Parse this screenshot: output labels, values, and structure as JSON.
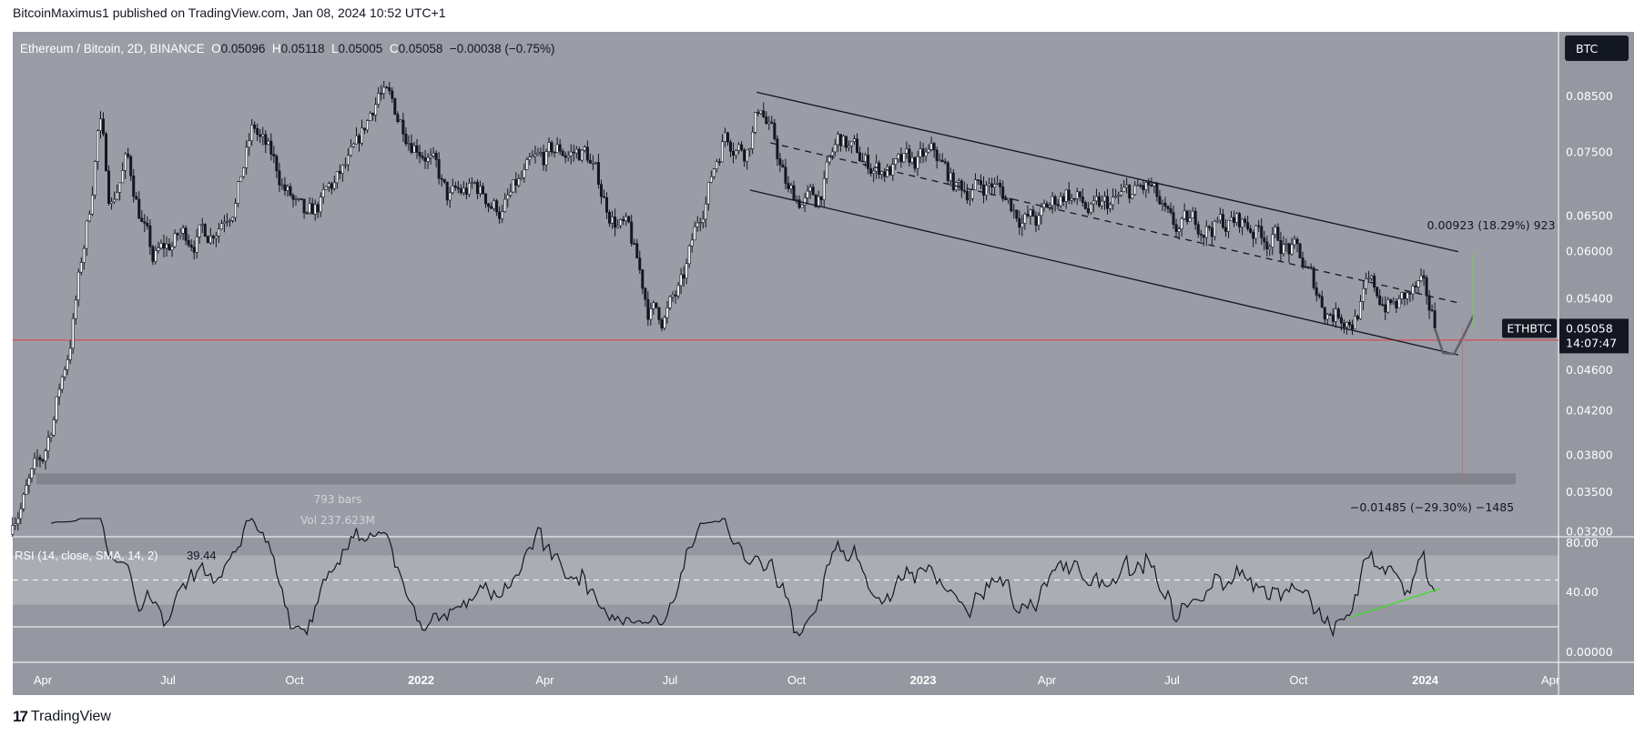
{
  "header": {
    "published": "BitcoinMaximus1 published on TradingView.com, Jan 08, 2024 10:52 UTC+1"
  },
  "legend": {
    "symbol": "Ethereum / Bitcoin, 2D, BINANCE",
    "o_label": "O",
    "o": "0.05096",
    "h_label": "H",
    "h": "0.05118",
    "l_label": "L",
    "l": "0.05005",
    "c_label": "C",
    "c": "0.05058",
    "change": "−0.00038 (−0.75%)"
  },
  "currency_button": "BTC",
  "price_label": {
    "ticker": "ETHBTC",
    "price": "0.05058",
    "countdown": "14:07:47"
  },
  "colors": {
    "pane_bg": "#9a9da6",
    "axis_bg": "#9598a1",
    "up_candle": "#ffffff",
    "down_candle": "#131722",
    "support_line": "#f23645",
    "projection_up": "#7fbf6a",
    "rsi_trendline": "#39e01f",
    "rsi_band": "#abadb5"
  },
  "chart_data": {
    "type": "candlestick",
    "title": "Ethereum / Bitcoin, 2D, BINANCE",
    "y_scale": "log",
    "ylim": [
      0.031,
      0.091
    ],
    "y_ticks": [
      "0.08500",
      "0.07500",
      "0.06500",
      "0.06000",
      "0.05400",
      "0.04600",
      "0.04200",
      "0.03800",
      "0.03500",
      "0.03200"
    ],
    "x_ticks": [
      {
        "label": "Apr",
        "date": "2021-04-01"
      },
      {
        "label": "Jul",
        "date": "2021-07-01"
      },
      {
        "label": "Oct",
        "date": "2021-10-01"
      },
      {
        "label": "2022",
        "date": "2022-01-01",
        "bold": true
      },
      {
        "label": "Apr",
        "date": "2022-04-01"
      },
      {
        "label": "Jul",
        "date": "2022-07-01"
      },
      {
        "label": "Oct",
        "date": "2022-10-01"
      },
      {
        "label": "2023",
        "date": "2023-01-01",
        "bold": true
      },
      {
        "label": "Apr",
        "date": "2023-04-01"
      },
      {
        "label": "Jul",
        "date": "2023-07-01"
      },
      {
        "label": "Oct",
        "date": "2023-10-01"
      },
      {
        "label": "2024",
        "date": "2024-01-01",
        "bold": true
      },
      {
        "label": "Apr",
        "date": "2024-04-01"
      }
    ],
    "close_path": [
      [
        "2021-03-10",
        0.0333
      ],
      [
        "2021-04-01",
        0.0374
      ],
      [
        "2021-04-20",
        0.0485
      ],
      [
        "2021-05-05",
        0.066
      ],
      [
        "2021-05-12",
        0.0815
      ],
      [
        "2021-05-20",
        0.067
      ],
      [
        "2021-06-01",
        0.074
      ],
      [
        "2021-06-20",
        0.0586
      ],
      [
        "2021-07-10",
        0.062
      ],
      [
        "2021-08-01",
        0.063
      ],
      [
        "2021-08-20",
        0.069
      ],
      [
        "2021-09-01",
        0.079
      ],
      [
        "2021-09-20",
        0.071
      ],
      [
        "2021-10-10",
        0.063
      ],
      [
        "2021-10-25",
        0.068
      ],
      [
        "2021-11-15",
        0.074
      ],
      [
        "2021-12-01",
        0.0865
      ],
      [
        "2021-12-15",
        0.081
      ],
      [
        "2022-01-05",
        0.076
      ],
      [
        "2022-01-20",
        0.067
      ],
      [
        "2022-02-10",
        0.069
      ],
      [
        "2022-03-01",
        0.066
      ],
      [
        "2022-03-20",
        0.071
      ],
      [
        "2022-04-10",
        0.075
      ],
      [
        "2022-05-01",
        0.075
      ],
      [
        "2022-05-15",
        0.067
      ],
      [
        "2022-06-01",
        0.062
      ],
      [
        "2022-06-15",
        0.053
      ],
      [
        "2022-06-25",
        0.052
      ],
      [
        "2022-07-10",
        0.055
      ],
      [
        "2022-07-25",
        0.067
      ],
      [
        "2022-08-10",
        0.079
      ],
      [
        "2022-08-25",
        0.076
      ],
      [
        "2022-09-05",
        0.084
      ],
      [
        "2022-09-15",
        0.076
      ],
      [
        "2022-09-25",
        0.068
      ],
      [
        "2022-10-15",
        0.067
      ],
      [
        "2022-11-01",
        0.077
      ],
      [
        "2022-11-20",
        0.073
      ],
      [
        "2022-12-15",
        0.072
      ],
      [
        "2023-01-10",
        0.074
      ],
      [
        "2023-01-25",
        0.069
      ],
      [
        "2023-02-20",
        0.07
      ],
      [
        "2023-03-10",
        0.066
      ],
      [
        "2023-03-25",
        0.064
      ],
      [
        "2023-04-15",
        0.069
      ],
      [
        "2023-05-05",
        0.065
      ],
      [
        "2023-06-01",
        0.068
      ],
      [
        "2023-06-15",
        0.069
      ],
      [
        "2023-07-01",
        0.062
      ],
      [
        "2023-07-20",
        0.064
      ],
      [
        "2023-08-20",
        0.064
      ],
      [
        "2023-09-15",
        0.062
      ],
      [
        "2023-10-01",
        0.059
      ],
      [
        "2023-10-20",
        0.053
      ],
      [
        "2023-11-10",
        0.052
      ],
      [
        "2023-11-20",
        0.055
      ],
      [
        "2023-12-10",
        0.053
      ],
      [
        "2023-12-28",
        0.055
      ],
      [
        "2024-01-08",
        0.05058
      ]
    ],
    "drawings": {
      "channel_upper": [
        [
          "2022-09-02",
          0.0858
        ],
        [
          "2024-01-25",
          0.06
        ]
      ],
      "channel_mid": [
        [
          "2022-09-12",
          0.0766
        ],
        [
          "2024-01-25",
          0.0535
        ]
      ],
      "channel_lower": [
        [
          "2022-08-28",
          0.0689
        ],
        [
          "2024-01-25",
          0.0476
        ]
      ],
      "horizontal_support": 0.0492,
      "support_zone": [
        0.0356,
        0.0365
      ],
      "projection_path": [
        [
          "2024-01-08",
          0.0505
        ],
        [
          "2024-01-14",
          0.0478
        ],
        [
          "2024-01-22",
          0.0477
        ],
        [
          "2024-01-30",
          0.05
        ],
        [
          "2024-02-05",
          0.052
        ]
      ],
      "measure_up": {
        "date": "2024-02-05",
        "from": 0.0505,
        "to": 0.0597,
        "label": "0.00923 (18.29%) 923"
      },
      "measure_down": {
        "date": "2024-01-28",
        "from": 0.0506,
        "to": 0.0357,
        "label": "−0.01485 (−29.30%) −1485"
      },
      "range_info": {
        "bars": "793 bars",
        "volume": "Vol 237.623M"
      }
    },
    "rsi": {
      "label": "RSI (14, close, SMA, 14, 2)",
      "value": "39.44",
      "ylim": [
        0,
        100
      ],
      "y_ticks": [
        "80.00",
        "40.00",
        "0.00000"
      ],
      "band": [
        30,
        70
      ],
      "midline": 50,
      "trendline": [
        [
          "2023-11-08",
          20
        ],
        [
          "2024-01-12",
          43
        ]
      ]
    }
  },
  "footer": {
    "brand": "TradingView"
  }
}
